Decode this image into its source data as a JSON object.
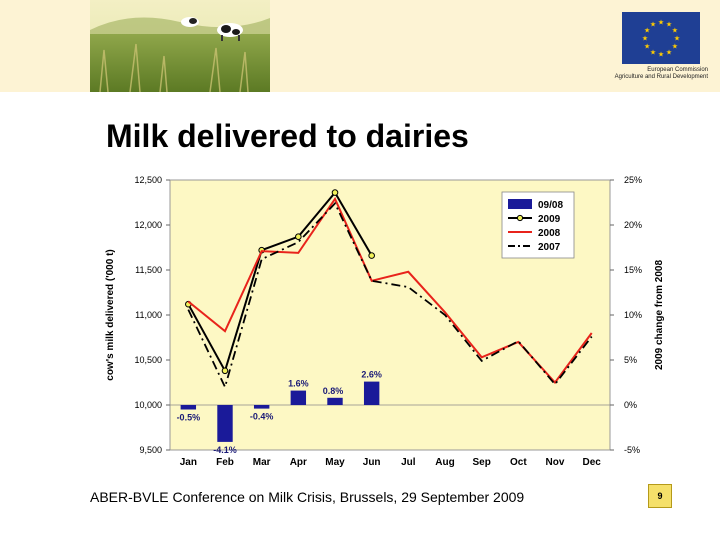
{
  "header": {
    "logo_line1": "European Commission",
    "logo_line2": "Agriculture and Rural Development",
    "eu_blue": "#1f3f94",
    "eu_gold": "#ffcc00",
    "band_color": "#fdf3d4"
  },
  "slide": {
    "title": "Milk delivered to dairies",
    "footer": "ABER-BVLE Conference on Milk Crisis, Brussels, 29 September 2009",
    "page_number": "9"
  },
  "chart_data": {
    "type": "line",
    "title": "",
    "ylabel": "cow's milk delivered ('000 t)",
    "y2label": "2009 change from 2008",
    "categories": [
      "Jan",
      "Feb",
      "Mar",
      "Apr",
      "May",
      "Jun",
      "Jul",
      "Aug",
      "Sep",
      "Oct",
      "Nov",
      "Dec"
    ],
    "ylim": [
      9500,
      12500
    ],
    "yticks": [
      "9,500",
      "10,000",
      "10,500",
      "11,000",
      "11,500",
      "12,000",
      "12,500"
    ],
    "y2lim": [
      -5,
      25
    ],
    "y2ticks": [
      "-5%",
      "0%",
      "5%",
      "10%",
      "15%",
      "20%",
      "25%"
    ],
    "plot_background": "#fdf8c4",
    "legend_position": "top-right",
    "series": [
      {
        "name": "2009",
        "kind": "line-marker",
        "color": "#000000",
        "values": [
          11120,
          10380,
          11720,
          11870,
          12360,
          11660,
          null,
          null,
          null,
          null,
          null,
          null
        ]
      },
      {
        "name": "2008",
        "kind": "line",
        "color": "#e8231b",
        "values": [
          11150,
          10820,
          11710,
          11690,
          12290,
          11380,
          11480,
          11030,
          10530,
          10700,
          10250,
          10800
        ]
      },
      {
        "name": "2007",
        "kind": "dashed",
        "color": "#000000",
        "values": [
          11060,
          10200,
          11620,
          11810,
          12240,
          11380,
          11310,
          11000,
          10490,
          10710,
          10230,
          10760
        ]
      },
      {
        "name": "09/08",
        "kind": "bar",
        "color": "#1a1a99",
        "axis": "right",
        "values": [
          -0.5,
          -4.1,
          -0.4,
          1.6,
          0.8,
          2.6,
          null,
          null,
          null,
          null,
          null,
          null
        ]
      }
    ],
    "bar_labels": [
      "-0.5%",
      "-4.1%",
      "-0.4%",
      "1.6%",
      "0.8%",
      "2.6%"
    ]
  }
}
